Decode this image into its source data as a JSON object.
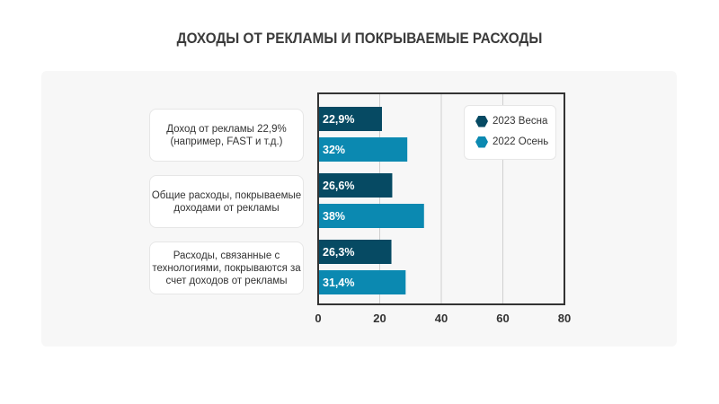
{
  "chart_data": {
    "type": "bar",
    "title": "ДОХОДЫ ОТ РЕКЛАМЫ И ПОКРЫВАЕМЫЕ РАСХОДЫ",
    "categories": [
      "Доход от рекламы 22,9% (например, FAST и т.д.)",
      "Общие расходы, покрываемые доходами от рекламы",
      "Расходы, связанные с технологиями, покрываются за счет доходов от рекламы"
    ],
    "series": [
      {
        "name": "2023 Весна",
        "values": [
          22.9,
          26.6,
          26.3
        ],
        "labels": [
          "22,9%",
          "26,6%",
          "26,3%"
        ],
        "color": "#064a63"
      },
      {
        "name": "2022 Осень",
        "values": [
          32,
          38,
          31.4
        ],
        "labels": [
          "32%",
          "38%",
          "31,4%"
        ],
        "color": "#0b89b1"
      }
    ],
    "xlim": [
      0,
      80
    ],
    "xticks": [
      "0",
      "20",
      "40",
      "60",
      "80"
    ],
    "grid": true,
    "legend": "top-right"
  }
}
